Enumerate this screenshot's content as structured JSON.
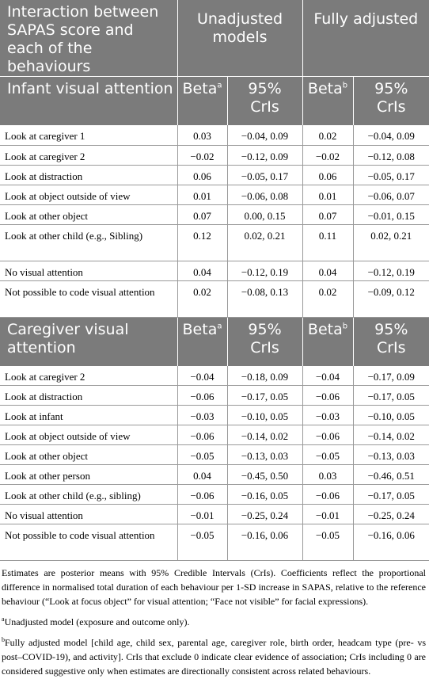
{
  "header": {
    "col1": "Interaction between SAPAS score and each of the behaviours",
    "col_unadjusted": "Unadjusted models",
    "col_adjusted": "Fully adjusted"
  },
  "sections": [
    {
      "title": "Infant visual attention",
      "beta_label": "Beta",
      "beta_sup_unadj": "a",
      "beta_sup_adj": "b",
      "cri_label": "95% CrIs",
      "rows": [
        {
          "label": "Look at caregiver 1",
          "b1": "0.03",
          "c1": "−0.04, 0.09",
          "b2": "0.02",
          "c2": "−0.04, 0.09"
        },
        {
          "label": "Look at caregiver 2",
          "b1": "−0.02",
          "c1": "−0.12, 0.09",
          "b2": "−0.02",
          "c2": "−0.12, 0.08"
        },
        {
          "label": "Look at distraction",
          "b1": "0.06",
          "c1": "−0.05, 0.17",
          "b2": "0.06",
          "c2": "−0.05, 0.17"
        },
        {
          "label": "Look at object outside of view",
          "b1": "0.01",
          "c1": "−0.06, 0.08",
          "b2": "0.01",
          "c2": "−0.06, 0.07"
        },
        {
          "label": "Look at other object",
          "b1": "0.07",
          "c1": "0.00, 0.15",
          "b2": "0.07",
          "c2": "−0.01, 0.15"
        },
        {
          "label": "Look at other child (e.g., Sibling)",
          "b1": "0.12",
          "c1": "0.02, 0.21",
          "b2": "0.11",
          "c2": "0.02, 0.21"
        },
        {
          "label": "No visual attention",
          "b1": "0.04",
          "c1": "−0.12, 0.19",
          "b2": "0.04",
          "c2": "−0.12, 0.19"
        },
        {
          "label": "Not possible to code visual attention",
          "b1": "0.02",
          "c1": "−0.08, 0.13",
          "b2": "0.02",
          "c2": "−0.09, 0.12"
        }
      ]
    },
    {
      "title": "Caregiver visual attention",
      "beta_label": "Beta",
      "beta_sup_unadj": "a",
      "beta_sup_adj": "b",
      "cri_label": "95% CrIs",
      "rows": [
        {
          "label": "Look at caregiver 2",
          "b1": "−0.04",
          "c1": "−0.18, 0.09",
          "b2": "−0.04",
          "c2": "−0.17, 0.09"
        },
        {
          "label": "Look at distraction",
          "b1": "−0.06",
          "c1": "−0.17, 0.05",
          "b2": "−0.06",
          "c2": "−0.17, 0.05"
        },
        {
          "label": "Look at infant",
          "b1": "−0.03",
          "c1": "−0.10, 0.05",
          "b2": "−0.03",
          "c2": "−0.10, 0.05"
        },
        {
          "label": "Look at object outside of view",
          "b1": "−0.06",
          "c1": "−0.14, 0.02",
          "b2": "−0.06",
          "c2": "−0.14, 0.02"
        },
        {
          "label": "Look at other object",
          "b1": "−0.05",
          "c1": "−0.13, 0.03",
          "b2": "−0.05",
          "c2": "−0.13, 0.03"
        },
        {
          "label": "Look at other person",
          "b1": "0.04",
          "c1": "−0.45, 0.50",
          "b2": "0.03",
          "c2": "−0.46, 0.51"
        },
        {
          "label": "Look at other child (e.g., sibling)",
          "b1": "−0.06",
          "c1": "−0.16, 0.05",
          "b2": "−0.06",
          "c2": "−0.17, 0.05"
        },
        {
          "label": "No visual attention",
          "b1": "−0.01",
          "c1": "−0.25, 0.24",
          "b2": "−0.01",
          "c2": "−0.25, 0.24"
        },
        {
          "label": "Not possible to code visual attention",
          "b1": "−0.05",
          "c1": "−0.16, 0.06",
          "b2": "−0.05",
          "c2": "−0.16, 0.06"
        }
      ]
    }
  ],
  "notes": {
    "main": "Estimates are posterior means with 95% Credible Intervals (CrIs). Coefficients reflect the proportional difference in normalised total duration of each behaviour per 1-SD increase in SAPAS, relative to the reference behaviour (“Look at focus object” for visual attention; “Face not visible” for facial expressions).",
    "fn_a_mark": "a",
    "fn_a": "Unadjusted model (exposure and outcome only).",
    "fn_b_mark": "b",
    "fn_b": "Fully adjusted model [child age, child sex, parental age, caregiver role, birth order, headcam type (pre- vs post–COVID-19), and activity]. CrIs that exclude 0 indicate clear evidence of association; CrIs including 0 are considered suggestive only when estimates are directionally consistent across related behaviours."
  }
}
